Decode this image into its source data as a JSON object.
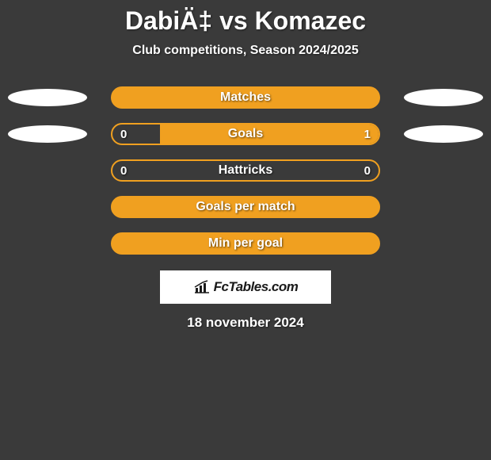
{
  "title": "DabiÄ‡ vs Komazec",
  "subtitle": "Club competitions, Season 2024/2025",
  "colors": {
    "background": "#3a3a3a",
    "accent": "#f0a020",
    "ellipse": "#ffffff",
    "text": "#ffffff"
  },
  "rows": [
    {
      "label": "Matches",
      "show_ellipses": true,
      "left_ellipse_text": "",
      "right_ellipse_text": "",
      "left_value": null,
      "right_value": null,
      "left_pct": 100,
      "right_pct": 0,
      "bar_bg": "#f0a020",
      "border_color": "#f0a020"
    },
    {
      "label": "Goals",
      "show_ellipses": true,
      "left_ellipse_text": "",
      "right_ellipse_text": "",
      "left_value": "0",
      "right_value": "1",
      "left_pct": 18,
      "right_pct": 82,
      "bar_bg": "#3a3a3a",
      "border_color": "#f0a020",
      "right_fill_color": "#f0a020"
    },
    {
      "label": "Hattricks",
      "show_ellipses": false,
      "left_value": "0",
      "right_value": "0",
      "left_pct": 0,
      "right_pct": 0,
      "bar_bg": "#3a3a3a",
      "border_color": "#f0a020"
    },
    {
      "label": "Goals per match",
      "show_ellipses": false,
      "left_value": null,
      "right_value": null,
      "left_pct": 100,
      "right_pct": 0,
      "bar_bg": "#f0a020",
      "border_color": "#f0a020"
    },
    {
      "label": "Min per goal",
      "show_ellipses": false,
      "left_value": null,
      "right_value": null,
      "left_pct": 100,
      "right_pct": 0,
      "bar_bg": "#f0a020",
      "border_color": "#f0a020"
    }
  ],
  "brand": "FcTables.com",
  "date": "18 november 2024"
}
